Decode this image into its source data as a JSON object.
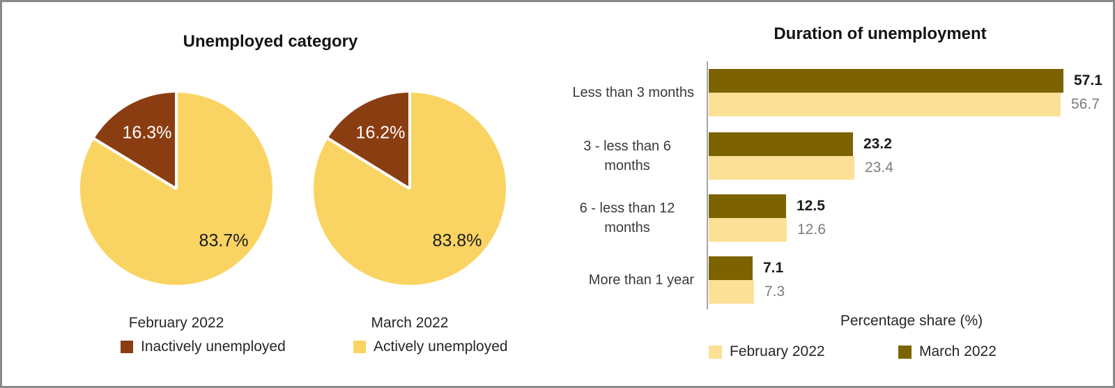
{
  "pie_panel": {
    "title": "Unemployed category",
    "captions": [
      "February 2022",
      "March 2022"
    ],
    "legend": [
      {
        "label": "Inactively unemployed",
        "color": "#8B3D12"
      },
      {
        "label": "Actively unemployed",
        "color": "#FAD463"
      }
    ]
  },
  "bar_panel": {
    "title": "Duration of unemployment",
    "xlabel": "Percentage share (%)",
    "legend": [
      {
        "label": "February 2022",
        "color": "#FCE096"
      },
      {
        "label": "March 2022",
        "color": "#7D6200"
      }
    ]
  },
  "chart_data": [
    {
      "type": "pie",
      "title": "Unemployed category",
      "colors": {
        "Actively unemployed": "#FAD463",
        "Inactively unemployed": "#8B3D12"
      },
      "legend": [
        "Inactively unemployed",
        "Actively unemployed"
      ],
      "pies": [
        {
          "caption": "February 2022",
          "slices": [
            {
              "name": "Actively unemployed",
              "value": 83.7,
              "label": "83.7%"
            },
            {
              "name": "Inactively unemployed",
              "value": 16.3,
              "label": "16.3%"
            }
          ]
        },
        {
          "caption": "March 2022",
          "slices": [
            {
              "name": "Actively unemployed",
              "value": 83.8,
              "label": "83.8%"
            },
            {
              "name": "Inactively unemployed",
              "value": 16.2,
              "label": "16.2%"
            }
          ]
        }
      ]
    },
    {
      "type": "bar",
      "orientation": "horizontal",
      "title": "Duration of unemployment",
      "categories": [
        "Less than 3 months",
        "3 - less than 6 months",
        "6 - less than 12 months",
        "More than 1 year"
      ],
      "series": [
        {
          "name": "March 2022",
          "values": [
            57.1,
            23.2,
            12.5,
            7.1
          ],
          "color": "#7D6200",
          "value_style": "bold"
        },
        {
          "name": "February 2022",
          "values": [
            56.7,
            23.4,
            12.6,
            7.3
          ],
          "color": "#FCE096",
          "value_style": "gray"
        }
      ],
      "xlabel": "Percentage share (%)",
      "xlim": [
        0,
        60
      ],
      "grid": false,
      "legend_position": "bottom",
      "value_labels": true
    }
  ]
}
